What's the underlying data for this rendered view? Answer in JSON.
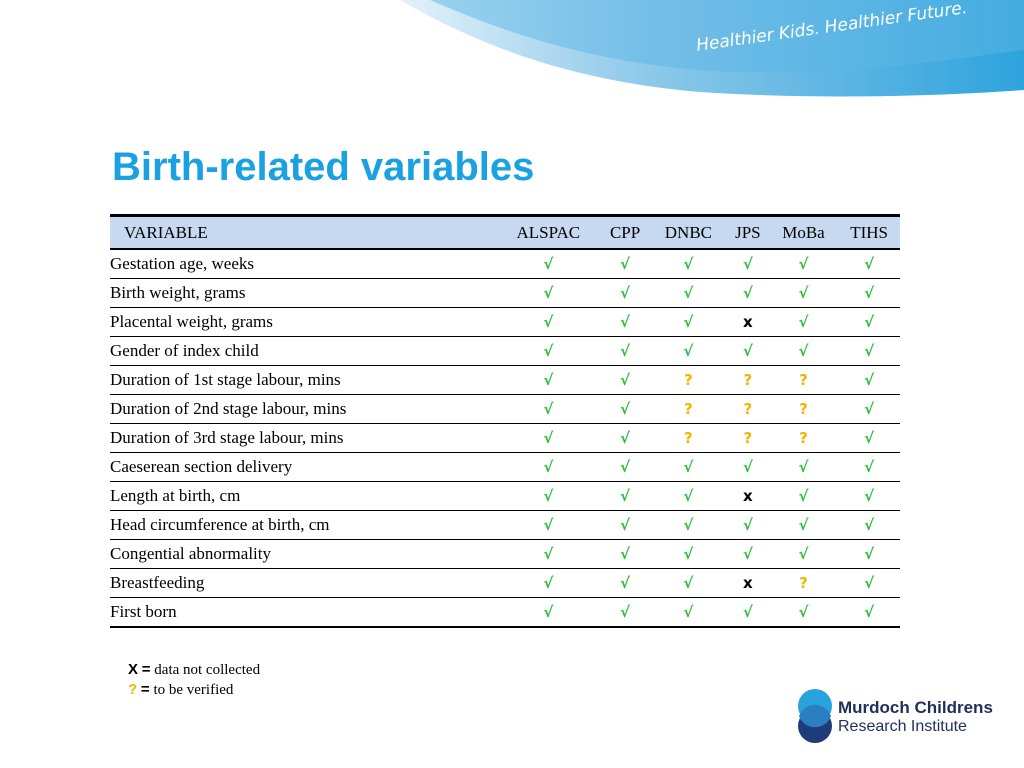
{
  "header": {
    "tagline": "Healthier Kids. Healthier Future."
  },
  "title": "Birth-related variables",
  "table": {
    "columns": [
      "VARIABLE",
      "ALSPAC",
      "CPP",
      "DNBC",
      "JPS",
      "MoBa",
      "TIHS"
    ],
    "symbol_colors": {
      "√": "#2ebd3a",
      "?": "#f2b500",
      "x": "#000000"
    },
    "rows": [
      [
        "Gestation age, weeks",
        "√",
        "√",
        "√",
        "√",
        "√",
        "√"
      ],
      [
        "Birth weight, grams",
        "√",
        "√",
        "√",
        "√",
        "√",
        "√"
      ],
      [
        "Placental weight, grams",
        "√",
        "√",
        "√",
        "x",
        "√",
        "√"
      ],
      [
        "Gender of index child",
        "√",
        "√",
        "√",
        "√",
        "√",
        "√"
      ],
      [
        "Duration of 1st stage labour, mins",
        "√",
        "√",
        "?",
        "?",
        "?",
        "√"
      ],
      [
        "Duration of 2nd stage labour, mins",
        "√",
        "√",
        "?",
        "?",
        "?",
        "√"
      ],
      [
        "Duration of 3rd stage labour, mins",
        "√",
        "√",
        "?",
        "?",
        "?",
        "√"
      ],
      [
        "Caeserean section delivery",
        "√",
        "√",
        "√",
        "√",
        "√",
        "√"
      ],
      [
        "Length at birth, cm",
        "√",
        "√",
        "√",
        "x",
        "√",
        "√"
      ],
      [
        "Head circumference at birth, cm",
        "√",
        "√",
        "√",
        "√",
        "√",
        "√"
      ],
      [
        "Congential abnormality",
        "√",
        "√",
        "√",
        "√",
        "√",
        "√"
      ],
      [
        "Breastfeeding",
        "√",
        "√",
        "√",
        "x",
        "?",
        "√"
      ],
      [
        "First born",
        "√",
        "√",
        "√",
        "√",
        "√",
        "√"
      ]
    ]
  },
  "legend": [
    {
      "symbol": "X",
      "equals": "=",
      "text": "data not collected",
      "color": "#000000"
    },
    {
      "symbol": "?",
      "equals": "=",
      "text": "to be verified",
      "color": "#f2b500"
    }
  ],
  "logo": {
    "line1": "Murdoch Childrens",
    "line2": "Research Institute"
  }
}
